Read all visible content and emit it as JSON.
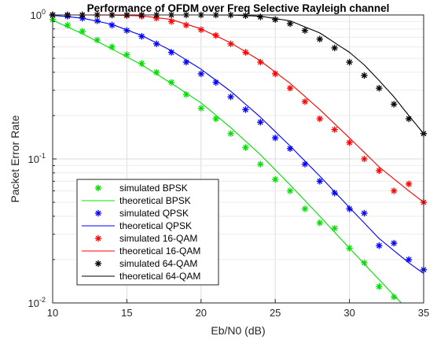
{
  "chart_data": {
    "type": "line",
    "title": "Performance of OFDM  over Freq Selective Rayleigh channel",
    "xlabel": "Eb/N0 (dB)",
    "ylabel": "Packet Error Rate",
    "xlim": [
      10,
      35
    ],
    "ylim": [
      0.01,
      1
    ],
    "yscale": "log",
    "grid": true,
    "legend_location": "bottom-left",
    "x_ticks": [
      "10",
      "15",
      "20",
      "25",
      "30",
      "35"
    ],
    "y_ticks": [
      {
        "value": 1,
        "base": "10",
        "exp": "0"
      },
      {
        "value": 0.1,
        "base": "10",
        "exp": "-1"
      },
      {
        "value": 0.01,
        "base": "10",
        "exp": "-2"
      }
    ],
    "series": [
      {
        "name": "simulated BPSK",
        "kind": "markers",
        "color": "#00e000",
        "x": [
          10,
          11,
          12,
          13,
          14,
          15,
          16,
          17,
          18,
          19,
          20,
          21,
          22,
          23,
          24,
          25,
          26,
          27,
          28,
          29,
          30,
          31,
          32,
          33
        ],
        "y": [
          0.93,
          0.85,
          0.77,
          0.67,
          0.6,
          0.53,
          0.46,
          0.4,
          0.34,
          0.28,
          0.225,
          0.19,
          0.15,
          0.12,
          0.092,
          0.072,
          0.06,
          0.045,
          0.036,
          0.033,
          0.024,
          0.019,
          0.013,
          0.011
        ]
      },
      {
        "name": "theoretical BPSK",
        "kind": "line",
        "color": "#00e000",
        "x": [
          10,
          12,
          14,
          16,
          18,
          20,
          22,
          24,
          26,
          28,
          30,
          32,
          34
        ],
        "y": [
          0.92,
          0.74,
          0.58,
          0.45,
          0.335,
          0.245,
          0.165,
          0.107,
          0.066,
          0.04,
          0.024,
          0.0145,
          0.0088
        ]
      },
      {
        "name": "simulated QPSK",
        "kind": "markers",
        "color": "#0000ff",
        "x": [
          10,
          11,
          12,
          13,
          14,
          15,
          16,
          17,
          18,
          19,
          20,
          21,
          22,
          23,
          24,
          25,
          26,
          27,
          28,
          29,
          30,
          31,
          32,
          33,
          34,
          35
        ],
        "y": [
          1.0,
          0.98,
          0.95,
          0.91,
          0.85,
          0.78,
          0.71,
          0.63,
          0.55,
          0.47,
          0.39,
          0.34,
          0.27,
          0.22,
          0.18,
          0.14,
          0.118,
          0.092,
          0.07,
          0.058,
          0.045,
          0.042,
          0.025,
          0.026,
          0.02,
          0.017
        ]
      },
      {
        "name": "theoretical QPSK",
        "kind": "line",
        "color": "#0000ff",
        "x": [
          10,
          12,
          14,
          16,
          18,
          20,
          22,
          24,
          26,
          28,
          30,
          32,
          34,
          35
        ],
        "y": [
          0.995,
          0.95,
          0.86,
          0.72,
          0.565,
          0.42,
          0.295,
          0.195,
          0.123,
          0.076,
          0.046,
          0.028,
          0.019,
          0.016
        ]
      },
      {
        "name": "simulated 16-QAM",
        "kind": "markers",
        "color": "#ff0000",
        "x": [
          10,
          11,
          12,
          13,
          14,
          15,
          16,
          17,
          18,
          19,
          20,
          21,
          22,
          23,
          24,
          25,
          26,
          27,
          28,
          29,
          30,
          31,
          32,
          33,
          34,
          35
        ],
        "y": [
          1.0,
          1.0,
          1.0,
          1.0,
          1.0,
          0.99,
          0.98,
          0.95,
          0.9,
          0.85,
          0.79,
          0.72,
          0.63,
          0.55,
          0.47,
          0.39,
          0.31,
          0.25,
          0.19,
          0.16,
          0.13,
          0.1,
          0.083,
          0.06,
          0.067,
          0.05
        ]
      },
      {
        "name": "theoretical 16-QAM",
        "kind": "line",
        "color": "#ff0000",
        "x": [
          10,
          12,
          14,
          16,
          18,
          20,
          22,
          24,
          26,
          28,
          30,
          32,
          34,
          35
        ],
        "y": [
          1.0,
          1.0,
          0.998,
          0.985,
          0.93,
          0.8,
          0.64,
          0.48,
          0.335,
          0.22,
          0.14,
          0.088,
          0.06,
          0.05
        ]
      },
      {
        "name": "simulated 64-QAM",
        "kind": "markers",
        "color": "#000000",
        "x": [
          10,
          11,
          12,
          13,
          14,
          15,
          16,
          17,
          18,
          19,
          20,
          21,
          22,
          23,
          24,
          25,
          26,
          27,
          28,
          29,
          30,
          31,
          32,
          33,
          34,
          35
        ],
        "y": [
          1.0,
          1.0,
          1.0,
          1.0,
          1.0,
          1.0,
          1.0,
          1.0,
          1.0,
          1.0,
          1.0,
          1.0,
          1.0,
          0.99,
          0.97,
          0.93,
          0.87,
          0.78,
          0.68,
          0.59,
          0.47,
          0.38,
          0.31,
          0.24,
          0.19,
          0.15
        ]
      },
      {
        "name": "theoretical 64-QAM",
        "kind": "line",
        "color": "#000000",
        "x": [
          10,
          14,
          18,
          20,
          22,
          24,
          26,
          28,
          30,
          31,
          32,
          33,
          34,
          35
        ],
        "y": [
          1.0,
          1.0,
          1.0,
          1.0,
          0.998,
          0.98,
          0.91,
          0.75,
          0.55,
          0.45,
          0.35,
          0.27,
          0.2,
          0.15
        ]
      }
    ]
  }
}
